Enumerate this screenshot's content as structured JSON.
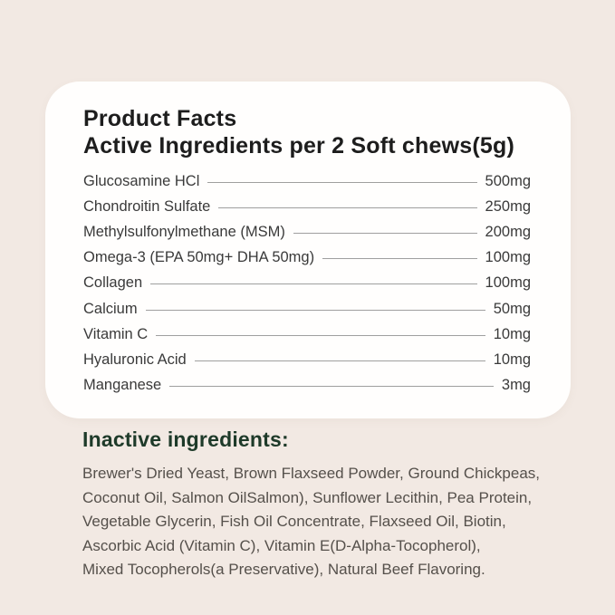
{
  "colors": {
    "page_background": "#f2e9e3",
    "card_background": "#fffefd",
    "title_text": "#1d1d1d",
    "ingredient_text": "#3a3a3a",
    "leader_line": "#9f9f9f",
    "inactive_heading_green": "#1e3a29",
    "inactive_body_text": "#55504b"
  },
  "product_facts": {
    "title_line1": "Product Facts",
    "title_line2": "Active Ingredients per 2 Soft chews(5g)",
    "ingredients": [
      {
        "name": "Glucosamine HCl",
        "amount": "500mg"
      },
      {
        "name": "Chondroitin Sulfate",
        "amount": "250mg"
      },
      {
        "name": "Methylsulfonylmethane (MSM)",
        "amount": "200mg"
      },
      {
        "name": "Omega-3 (EPA 50mg+ DHA 50mg)",
        "amount": "100mg"
      },
      {
        "name": "Collagen",
        "amount": "100mg"
      },
      {
        "name": "Calcium",
        "amount": "50mg"
      },
      {
        "name": "Vitamin C",
        "amount": "10mg"
      },
      {
        "name": "Hyaluronic Acid",
        "amount": "10mg"
      },
      {
        "name": "Manganese",
        "amount": "3mg"
      }
    ]
  },
  "inactive": {
    "heading": "Inactive ingredients:",
    "lines": [
      "Brewer's Dried Yeast, Brown Flaxseed Powder, Ground Chickpeas,",
      "Coconut Oil, Salmon OilSalmon), Sunflower Lecithin, Pea Protein,",
      "Vegetable Glycerin, Fish Oil Concentrate, Flaxseed Oil, Biotin,",
      "Ascorbic Acid (Vitamin C), Vitamin E(D-Alpha-Tocopherol),",
      "Mixed Tocopherols(a Preservative), Natural Beef Flavoring."
    ]
  }
}
